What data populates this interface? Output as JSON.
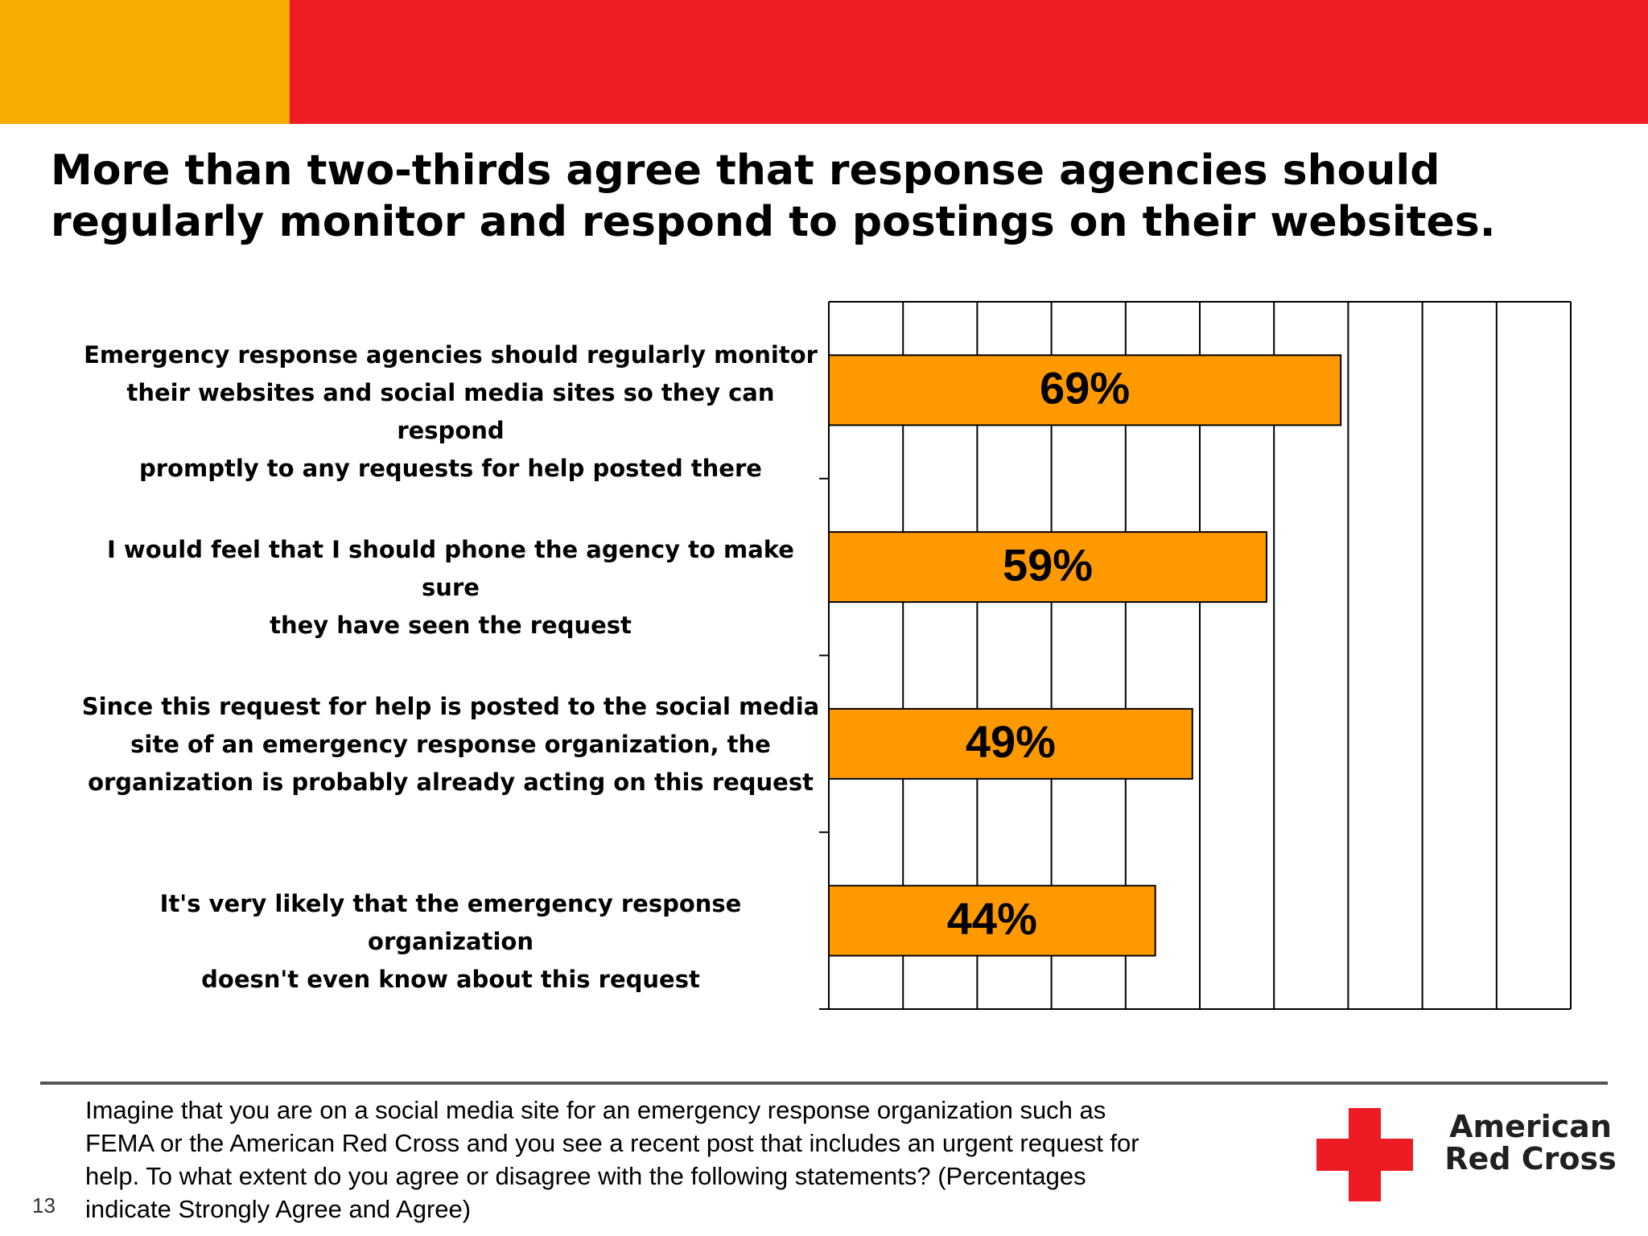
{
  "header_colors": {
    "left": "#F6AC00",
    "right": "#EE1C25"
  },
  "title": {
    "line1": "More than two-thirds agree that response agencies should",
    "line2": "regularly monitor and respond to postings on their websites."
  },
  "chart_data": {
    "type": "bar",
    "orientation": "horizontal",
    "categories": [
      "Emergency response agencies should regularly monitor\ntheir websites and social media sites so they can respond\npromptly to any requests for help posted there",
      "I would feel that I should phone the agency to make sure\nthey have seen the request",
      "Since this request for help is posted to the social media\nsite of an emergency response organization, the\norganization is probably already acting on this request",
      "It's very likely that the emergency response organization\ndoesn't even know about this request"
    ],
    "values": [
      69,
      59,
      49,
      44
    ],
    "data_labels": [
      "69%",
      "59%",
      "49%",
      "44%"
    ],
    "xlim": [
      0,
      100
    ],
    "grid": true,
    "bar_color": "#FF9900"
  },
  "footer": {
    "question": "Imagine that you are on a social media site for an emergency response organization such as\nFEMA or the American Red Cross and you see a recent post that includes an urgent request for\nhelp.  To what extent do you agree or disagree with the following statements? (Percentages\nindicate Strongly Agree and Agree)",
    "page_number": "13"
  },
  "logo": {
    "line1": "American",
    "line2": "Red Cross",
    "cross_color": "#ED1B24",
    "icon": "red-cross-icon"
  }
}
